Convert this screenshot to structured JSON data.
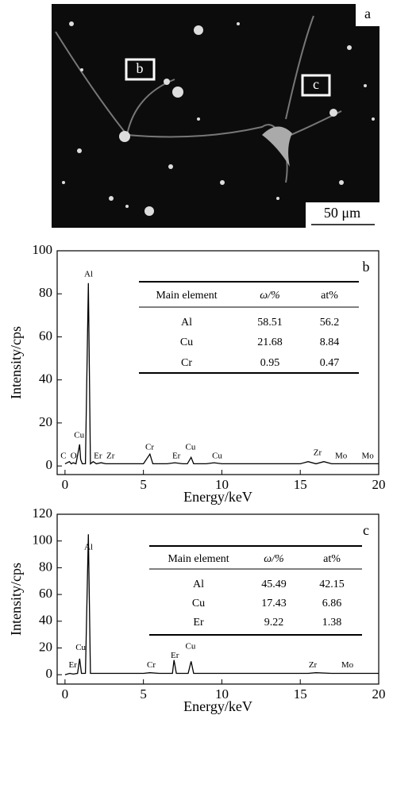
{
  "image": {
    "panel_label": "a",
    "markers": [
      "b",
      "c"
    ],
    "scale_bar": "50 μm"
  },
  "chart_data": [
    {
      "type": "line",
      "panel_label": "b",
      "x_label": "Energy/keV",
      "y_label": "Intensity/cps",
      "color": "#000000",
      "x": [
        0,
        0.28,
        0.4,
        0.52,
        0.7,
        0.93,
        1.0,
        1.1,
        1.3,
        1.49,
        1.62,
        1.8,
        2.0,
        2.3,
        2.6,
        3.0,
        3.5,
        4.0,
        4.5,
        5.0,
        5.41,
        5.6,
        6.0,
        6.5,
        7.0,
        7.5,
        7.8,
        8.04,
        8.2,
        8.6,
        9.0,
        9.5,
        10.0,
        11,
        12,
        13,
        14,
        15,
        15.5,
        16,
        16.5,
        17,
        17.5,
        18,
        19,
        20
      ],
      "values": [
        1,
        2,
        1,
        1.5,
        1,
        10,
        3,
        1,
        1,
        85,
        1,
        2,
        1,
        1.5,
        1,
        1,
        1,
        1,
        1,
        1,
        5.5,
        1,
        1,
        1,
        1.5,
        1,
        1,
        4,
        1,
        1,
        1,
        1.5,
        1,
        1,
        1,
        1,
        1,
        1,
        2,
        1,
        2,
        1,
        1,
        1,
        1,
        1
      ],
      "xlim": [
        -0.5,
        20
      ],
      "ylim": [
        -4,
        100
      ],
      "xticks": [
        0,
        5,
        10,
        15,
        20
      ],
      "yticks": [
        0,
        20,
        40,
        60,
        80,
        100
      ],
      "peak_labels": [
        {
          "text": "C",
          "x": -0.1,
          "y": 4.5
        },
        {
          "text": "O",
          "x": 0.55,
          "y": 4.5
        },
        {
          "text": "Cu",
          "x": 0.9,
          "y": 14
        },
        {
          "text": "Al",
          "x": 1.5,
          "y": 89
        },
        {
          "text": "Er",
          "x": 2.1,
          "y": 4.5
        },
        {
          "text": "Zr",
          "x": 2.9,
          "y": 4.5
        },
        {
          "text": "Cr",
          "x": 5.4,
          "y": 8.5
        },
        {
          "text": "Er",
          "x": 7.1,
          "y": 4.5
        },
        {
          "text": "Cu",
          "x": 8.0,
          "y": 8.5
        },
        {
          "text": "Cu",
          "x": 9.7,
          "y": 4.5
        },
        {
          "text": "Zr",
          "x": 16.1,
          "y": 6
        },
        {
          "text": "Mo",
          "x": 17.6,
          "y": 4.5
        },
        {
          "text": "Mo",
          "x": 19.3,
          "y": 4.5
        }
      ],
      "table": {
        "columns": [
          "Main element",
          "ω/%",
          "at%"
        ],
        "rows": [
          [
            "Al",
            "58.51",
            "56.2"
          ],
          [
            "Cu",
            "21.68",
            "8.84"
          ],
          [
            "Cr",
            "0.95",
            "0.47"
          ]
        ]
      }
    },
    {
      "type": "line",
      "panel_label": "c",
      "x_label": "Energy/keV",
      "y_label": "Intensity/cps",
      "color": "#000000",
      "x": [
        0,
        0.3,
        0.52,
        0.8,
        0.93,
        1.05,
        1.3,
        1.49,
        1.62,
        2,
        3,
        4,
        5,
        5.41,
        6,
        6.6,
        6.85,
        6.95,
        7.1,
        7.5,
        7.85,
        8.04,
        8.2,
        9,
        10,
        12,
        14,
        15.5,
        16,
        17,
        17.5,
        18,
        19,
        20
      ],
      "values": [
        0,
        1,
        0.5,
        1,
        12,
        1,
        1,
        105,
        1,
        1,
        1,
        1,
        1,
        1.5,
        1,
        1,
        1,
        11,
        1,
        1,
        1,
        10,
        1,
        1,
        1,
        1,
        1,
        1,
        1.5,
        1,
        1,
        1,
        1,
        1
      ],
      "xlim": [
        -0.5,
        20
      ],
      "ylim": [
        -7,
        120
      ],
      "xticks": [
        0,
        5,
        10,
        15,
        20
      ],
      "yticks": [
        0,
        20,
        40,
        60,
        80,
        100,
        120
      ],
      "peak_labels": [
        {
          "text": "Er",
          "x": 0.5,
          "y": 7
        },
        {
          "text": "Cu",
          "x": 1.0,
          "y": 20
        },
        {
          "text": "Al",
          "x": 1.5,
          "y": 95
        },
        {
          "text": "Cr",
          "x": 5.5,
          "y": 7
        },
        {
          "text": "Er",
          "x": 7.0,
          "y": 14
        },
        {
          "text": "Cu",
          "x": 8.0,
          "y": 21
        },
        {
          "text": "Zr",
          "x": 15.8,
          "y": 7
        },
        {
          "text": "Mo",
          "x": 18,
          "y": 7
        }
      ],
      "table": {
        "columns": [
          "Main element",
          "ω/%",
          "at%"
        ],
        "rows": [
          [
            "Al",
            "45.49",
            "42.15"
          ],
          [
            "Cu",
            "17.43",
            "6.86"
          ],
          [
            "Er",
            "9.22",
            "1.38"
          ]
        ]
      }
    }
  ]
}
